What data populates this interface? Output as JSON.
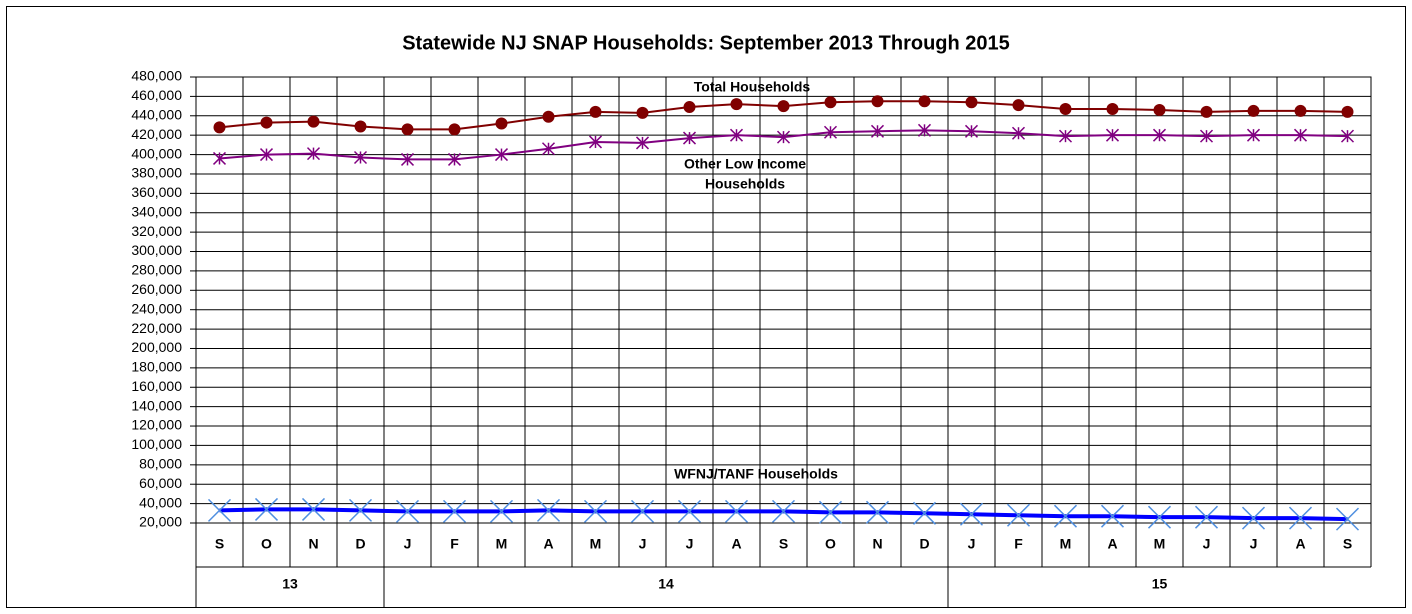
{
  "chart_data": {
    "type": "line",
    "title": "Statewide NJ SNAP Households: September 2013 Through 2015",
    "categories": [
      "S",
      "O",
      "N",
      "D",
      "J",
      "F",
      "M",
      "A",
      "M",
      "J",
      "J",
      "A",
      "S",
      "O",
      "N",
      "D",
      "J",
      "F",
      "M",
      "A",
      "M",
      "J",
      "J",
      "A",
      "S"
    ],
    "year_groups": [
      {
        "label": "13",
        "span": 4
      },
      {
        "label": "14",
        "span": 12
      },
      {
        "label": "15",
        "span": 9
      }
    ],
    "series": [
      {
        "name": "Total Households",
        "color": "#800000",
        "marker": "circle",
        "values": [
          428000,
          433000,
          434000,
          429000,
          426000,
          426000,
          432000,
          439000,
          444000,
          443000,
          449000,
          452000,
          450000,
          454000,
          455000,
          455000,
          454000,
          451000,
          447000,
          447000,
          446000,
          444000,
          445000,
          445000,
          444000
        ]
      },
      {
        "name": "Other Low Income Households",
        "color": "#800080",
        "marker": "asterisk",
        "values": [
          396000,
          400000,
          401000,
          397000,
          395000,
          395000,
          400000,
          406000,
          413000,
          412000,
          417000,
          420000,
          418000,
          423000,
          424000,
          425000,
          424000,
          422000,
          419000,
          420000,
          420000,
          419000,
          420000,
          420000,
          419000
        ]
      },
      {
        "name": "WFNJ/TANF Households",
        "color": "#0000ff",
        "marker": "x",
        "marker_color": "#4f8fe0",
        "values": [
          33000,
          34000,
          34000,
          33000,
          32000,
          32000,
          32000,
          33000,
          32000,
          32000,
          32000,
          32000,
          32000,
          31000,
          31000,
          30000,
          29000,
          28000,
          27000,
          27000,
          26000,
          26000,
          25000,
          25000,
          24000
        ]
      }
    ],
    "annotations": [
      {
        "lines": [
          "Total Households"
        ]
      },
      {
        "lines": [
          "Other Low Income",
          "Households"
        ]
      },
      {
        "lines": [
          "WFNJ/TANF Households"
        ]
      }
    ],
    "ylim": [
      20000,
      480000
    ],
    "yticks": [
      {
        "value": 20000,
        "label": "20,000"
      },
      {
        "value": 40000,
        "label": "40,000"
      },
      {
        "value": 60000,
        "label": "60,000"
      },
      {
        "value": 80000,
        "label": "80,000"
      },
      {
        "value": 100000,
        "label": "100,000"
      },
      {
        "value": 120000,
        "label": "120,000"
      },
      {
        "value": 140000,
        "label": "140,000"
      },
      {
        "value": 160000,
        "label": "160,000"
      },
      {
        "value": 180000,
        "label": "180,000"
      },
      {
        "value": 200000,
        "label": "200,000"
      },
      {
        "value": 220000,
        "label": "220,000"
      },
      {
        "value": 240000,
        "label": "240,000"
      },
      {
        "value": 260000,
        "label": "260,000"
      },
      {
        "value": 280000,
        "label": "280,000"
      },
      {
        "value": 300000,
        "label": "300,000"
      },
      {
        "value": 320000,
        "label": "320,000"
      },
      {
        "value": 340000,
        "label": "340,000"
      },
      {
        "value": 360000,
        "label": "360,000"
      },
      {
        "value": 380000,
        "label": "380,000"
      },
      {
        "value": 400000,
        "label": "400,000"
      },
      {
        "value": 420000,
        "label": "420,000"
      },
      {
        "value": 440000,
        "label": "440,000"
      },
      {
        "value": 460000,
        "label": "460,000"
      },
      {
        "value": 480000,
        "label": "480,000"
      }
    ],
    "grid": true
  }
}
